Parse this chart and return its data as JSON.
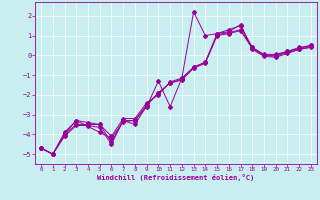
{
  "background_color": "#c8eef0",
  "grid_color": "#ffffff",
  "line_color": "#990099",
  "xlabel": "Windchill (Refroidissement éolien,°C)",
  "xlim": [
    -0.5,
    23.5
  ],
  "ylim": [
    -5.5,
    2.7
  ],
  "xticks": [
    0,
    1,
    2,
    3,
    4,
    5,
    6,
    7,
    8,
    9,
    10,
    11,
    12,
    13,
    14,
    15,
    16,
    17,
    18,
    19,
    20,
    21,
    22,
    23
  ],
  "yticks": [
    -5,
    -4,
    -3,
    -2,
    -1,
    0,
    1,
    2
  ],
  "line_smooth1_x": [
    0,
    1,
    2,
    3,
    4,
    5,
    6,
    7,
    8,
    9,
    10,
    11,
    12,
    13,
    14,
    15,
    16,
    17,
    18,
    19,
    20,
    21,
    22,
    23
  ],
  "line_smooth1_y": [
    -4.7,
    -5.0,
    -4.0,
    -3.5,
    -3.5,
    -3.5,
    -4.4,
    -3.3,
    -3.3,
    -2.5,
    -1.9,
    -1.4,
    -1.25,
    -0.65,
    -0.4,
    1.0,
    1.1,
    1.25,
    0.35,
    0.0,
    -0.05,
    0.15,
    0.3,
    0.45
  ],
  "line_smooth2_x": [
    0,
    1,
    2,
    3,
    4,
    5,
    6,
    7,
    8,
    9,
    10,
    11,
    12,
    13,
    14,
    15,
    16,
    17,
    18,
    19,
    20,
    21,
    22,
    23
  ],
  "line_smooth2_y": [
    -4.7,
    -5.0,
    -4.0,
    -3.3,
    -3.4,
    -3.5,
    -4.1,
    -3.2,
    -3.2,
    -2.4,
    -2.0,
    -1.35,
    -1.15,
    -0.6,
    -0.35,
    1.05,
    1.15,
    1.3,
    0.4,
    0.0,
    0.0,
    0.2,
    0.35,
    0.5
  ],
  "line_smooth3_x": [
    0,
    1,
    2,
    3,
    4,
    5,
    6,
    7,
    8,
    9,
    10,
    11,
    12,
    13,
    14,
    15,
    16,
    17,
    18,
    19,
    20,
    21,
    22,
    23
  ],
  "line_smooth3_y": [
    -4.7,
    -5.0,
    -4.1,
    -3.55,
    -3.55,
    -3.65,
    -4.5,
    -3.3,
    -3.5,
    -2.55,
    -1.9,
    -1.4,
    -1.2,
    -0.6,
    -0.35,
    1.1,
    1.3,
    1.5,
    0.4,
    0.05,
    0.05,
    0.2,
    0.4,
    0.5
  ],
  "line_spiky_x": [
    0,
    1,
    2,
    3,
    4,
    5,
    6,
    7,
    8,
    9,
    10,
    11,
    12,
    13,
    14,
    15,
    16,
    17,
    18,
    19,
    20,
    21,
    22,
    23
  ],
  "line_spiky_y": [
    -4.7,
    -5.0,
    -3.9,
    -3.3,
    -3.6,
    -3.9,
    -4.2,
    -3.35,
    -3.3,
    -2.6,
    -1.3,
    -2.6,
    -1.15,
    2.2,
    1.0,
    1.1,
    1.2,
    1.55,
    0.3,
    -0.05,
    -0.1,
    0.1,
    0.3,
    0.4
  ]
}
